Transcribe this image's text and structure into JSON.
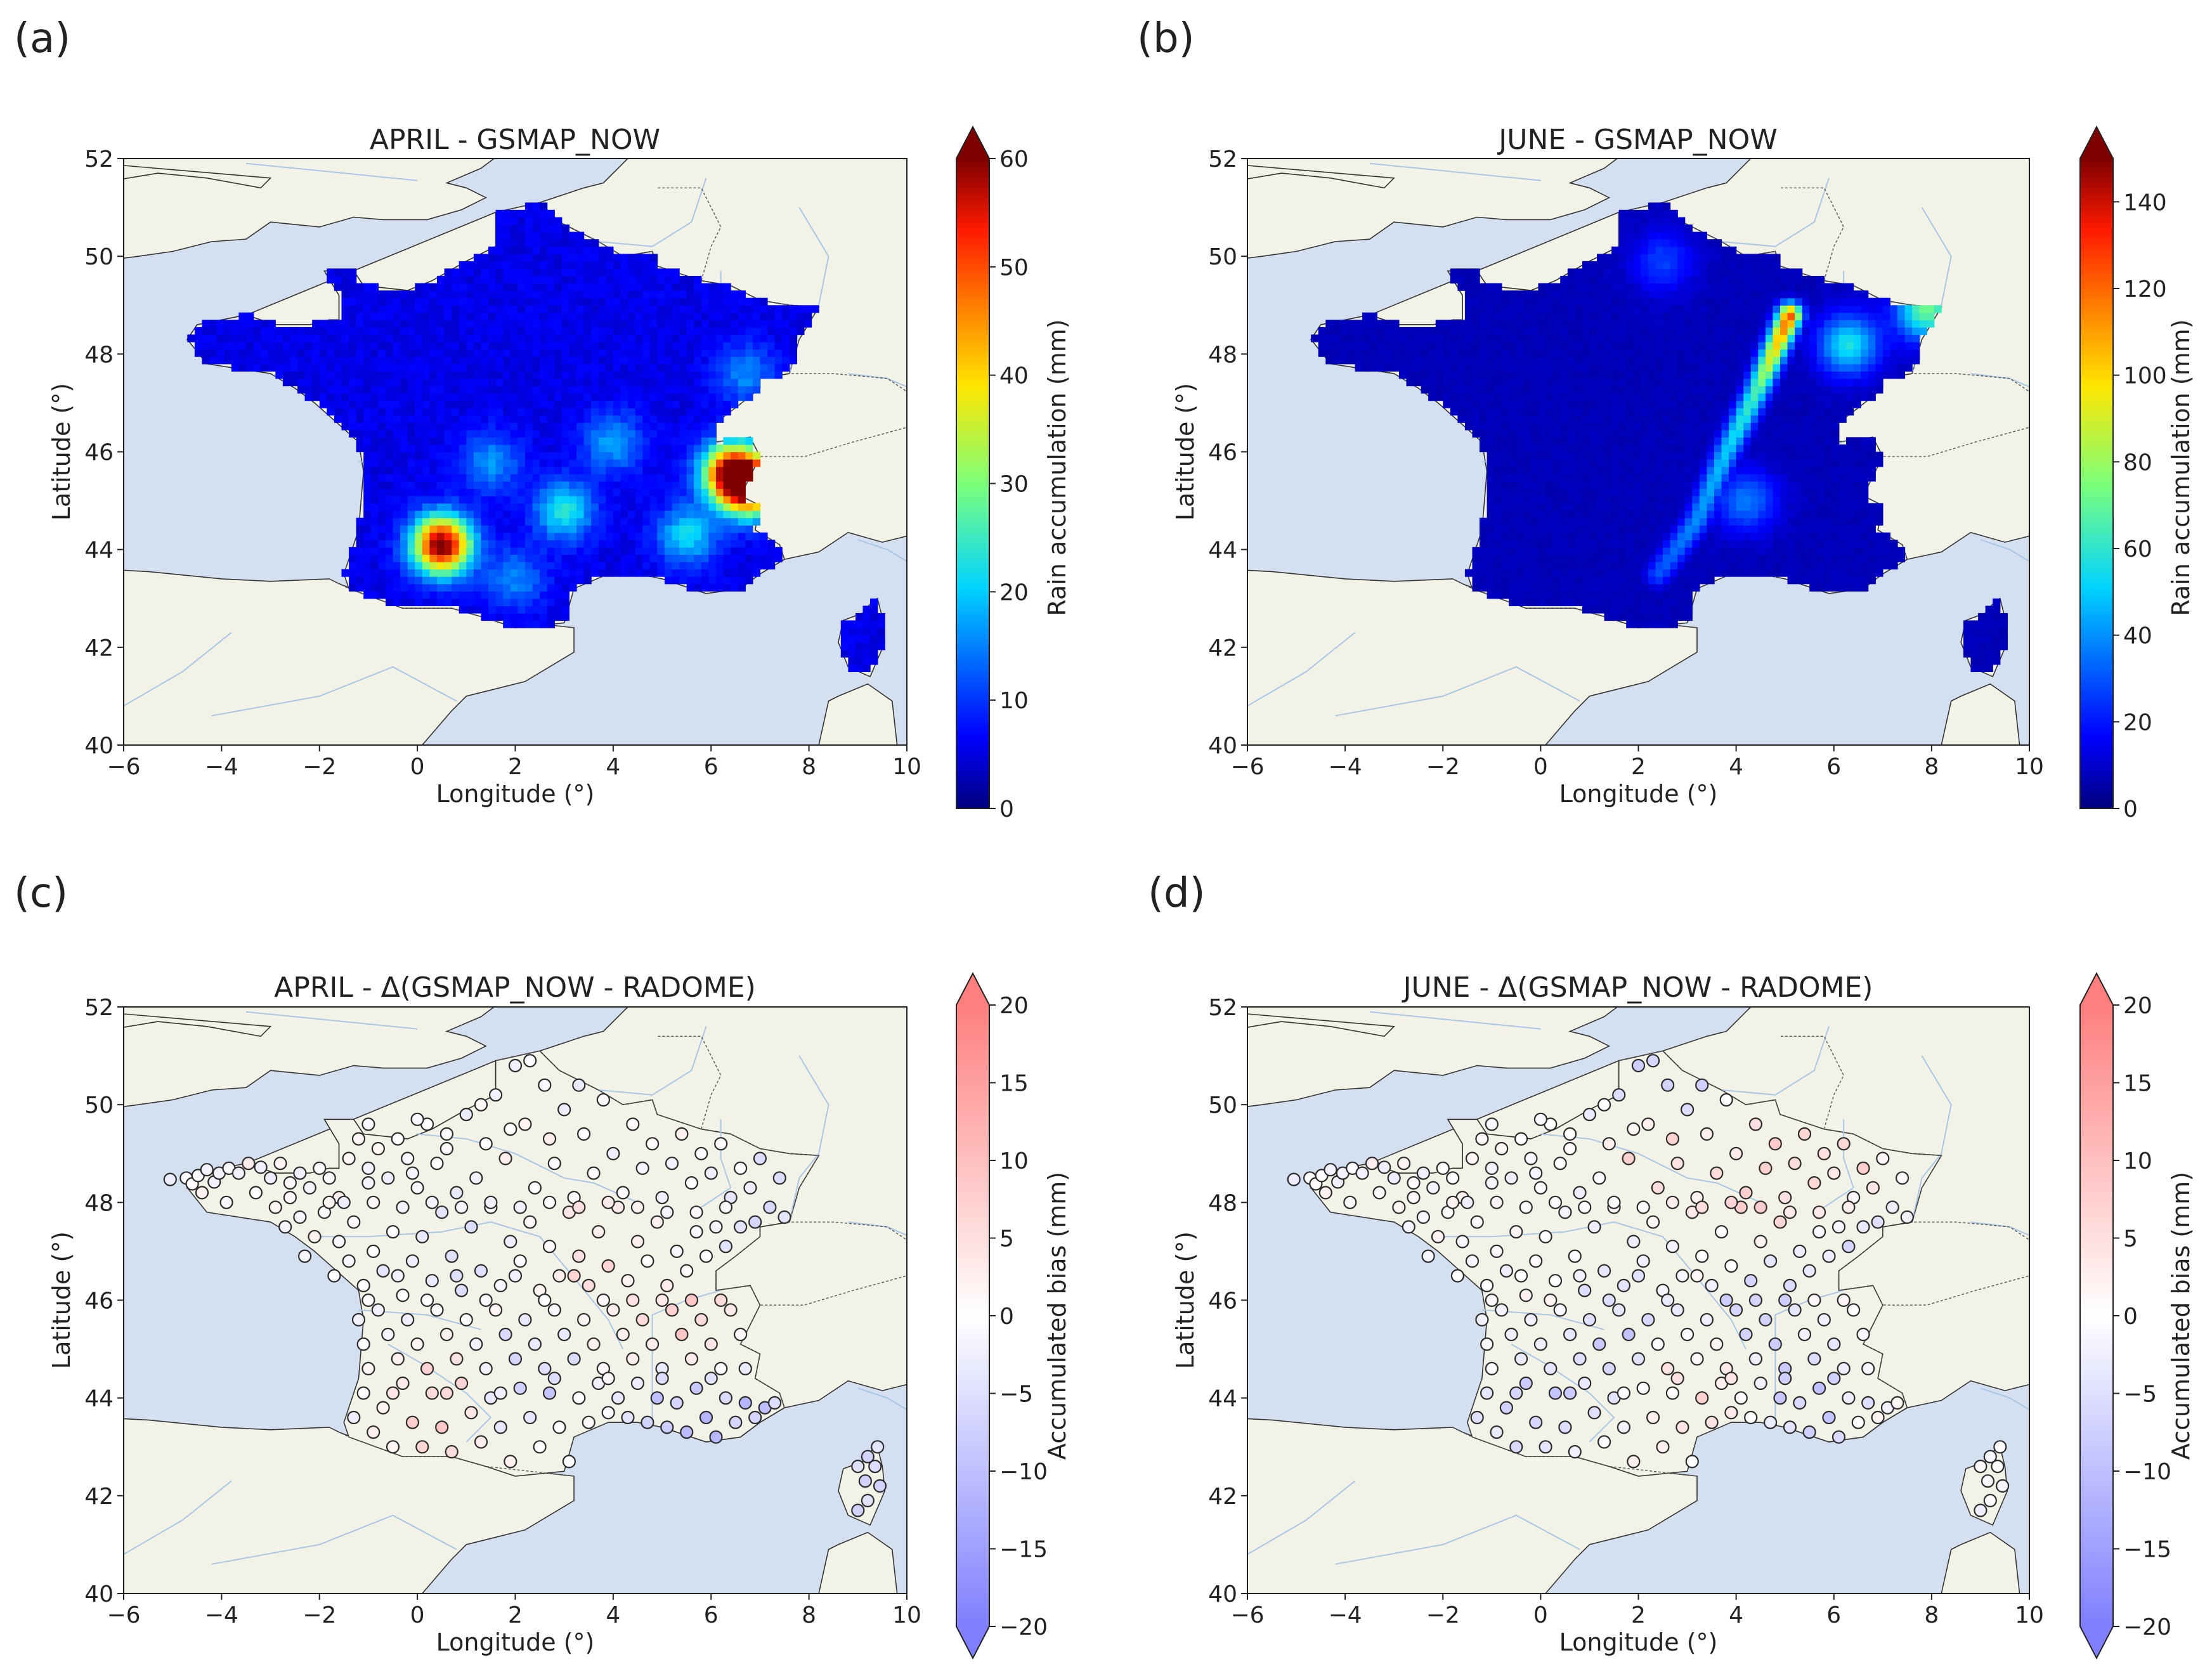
{
  "colors": {
    "ocean": "#d4e0f0",
    "land": "#f2f2e6",
    "coast": "#333333",
    "rivers": "#a9c6e6",
    "marker_edge": "#2b2b2b"
  },
  "chart_data": [
    {
      "panel": "(a)",
      "type": "heatmap",
      "title": "APRIL - GSMAP_NOW",
      "xlabel": "Longitude (°)",
      "ylabel": "Latitude (°)",
      "xlim": [
        -6,
        10
      ],
      "ylim": [
        40,
        52
      ],
      "xticks": [
        "−6",
        "−4",
        "−2",
        "0",
        "2",
        "4",
        "6",
        "8",
        "10"
      ],
      "yticks": [
        "40",
        "42",
        "44",
        "46",
        "48",
        "50",
        "52"
      ],
      "colorbar": {
        "label": "Rain accumulation (mm)",
        "cmap": "jet",
        "range": [
          0,
          60
        ],
        "ticks": [
          "0",
          "10",
          "20",
          "30",
          "40",
          "50",
          "60"
        ],
        "extend": "max"
      },
      "background": 4,
      "hotspots": [
        {
          "lon": 0.5,
          "lat": 44.1,
          "value": 60
        },
        {
          "lon": 6.4,
          "lat": 45.6,
          "value": 48
        },
        {
          "lon": 6.8,
          "lat": 45.3,
          "value": 55
        },
        {
          "lon": 3.0,
          "lat": 44.8,
          "value": 22
        },
        {
          "lon": 5.5,
          "lat": 44.3,
          "value": 20
        },
        {
          "lon": 4.0,
          "lat": 46.2,
          "value": 16
        },
        {
          "lon": 1.5,
          "lat": 45.8,
          "value": 15
        },
        {
          "lon": 2.0,
          "lat": 43.4,
          "value": 14
        },
        {
          "lon": 6.7,
          "lat": 47.6,
          "value": 14
        }
      ]
    },
    {
      "panel": "(b)",
      "type": "heatmap",
      "title": "JUNE - GSMAP_NOW",
      "xlabel": "Longitude (°)",
      "ylabel": "Latitude (°)",
      "xlim": [
        -6,
        10
      ],
      "ylim": [
        40,
        52
      ],
      "xticks": [
        "−6",
        "−4",
        "−2",
        "0",
        "2",
        "4",
        "6",
        "8",
        "10"
      ],
      "yticks": [
        "40",
        "42",
        "44",
        "46",
        "48",
        "50",
        "52"
      ],
      "colorbar": {
        "label": "Rain accumulation (mm)",
        "cmap": "jet",
        "range": [
          0,
          150
        ],
        "ticks": [
          "0",
          "20",
          "40",
          "60",
          "80",
          "100",
          "120",
          "140"
        ],
        "extend": "max"
      },
      "background": 6,
      "band": [
        {
          "lon": 2.4,
          "lat": 43.5,
          "value": 30
        },
        {
          "lon": 3.2,
          "lat": 44.6,
          "value": 40
        },
        {
          "lon": 3.8,
          "lat": 46.0,
          "value": 50
        },
        {
          "lon": 4.4,
          "lat": 47.2,
          "value": 65
        },
        {
          "lon": 5.1,
          "lat": 48.8,
          "value": 125
        }
      ],
      "hotspots": [
        {
          "lon": 6.3,
          "lat": 48.2,
          "value": 55
        },
        {
          "lon": 7.9,
          "lat": 48.9,
          "value": 70
        },
        {
          "lon": 4.2,
          "lat": 45.0,
          "value": 35
        },
        {
          "lon": 2.5,
          "lat": 49.9,
          "value": 25
        }
      ]
    },
    {
      "panel": "(c)",
      "type": "scatter",
      "title": "APRIL - Δ(GSMAP_NOW - RADOME)",
      "xlabel": "Longitude (°)",
      "ylabel": "Latitude (°)",
      "xlim": [
        -6,
        10
      ],
      "ylim": [
        40,
        52
      ],
      "xticks": [
        "−6",
        "−4",
        "−2",
        "0",
        "2",
        "4",
        "6",
        "8",
        "10"
      ],
      "yticks": [
        "40",
        "42",
        "44",
        "46",
        "48",
        "50",
        "52"
      ],
      "colorbar": {
        "label": "Accumulated bias (mm)",
        "cmap": "bwr",
        "range": [
          -20,
          20
        ],
        "ticks": [
          "−20",
          "−15",
          "−10",
          "−5",
          "0",
          "5",
          "10",
          "15",
          "20"
        ],
        "extend": "both"
      },
      "bias_regions": [
        {
          "lon": 0.5,
          "lat": 44.0,
          "value": 11
        },
        {
          "lon": 5.3,
          "lat": 45.6,
          "value": 10
        },
        {
          "lon": 3.3,
          "lat": 46.9,
          "value": 6
        },
        {
          "lon": 2.2,
          "lat": 44.3,
          "value": -10
        },
        {
          "lon": 5.2,
          "lat": 43.7,
          "value": -12
        },
        {
          "lon": 6.7,
          "lat": 43.5,
          "value": -13
        },
        {
          "lon": 7.3,
          "lat": 47.8,
          "value": -9
        },
        {
          "lon": 9.2,
          "lat": 42.4,
          "value": -8
        },
        {
          "lon": 0.5,
          "lat": 46.8,
          "value": -6
        }
      ]
    },
    {
      "panel": "(d)",
      "type": "scatter",
      "title": "JUNE - Δ(GSMAP_NOW - RADOME)",
      "xlabel": "Longitude (°)",
      "ylabel": "Latitude (°)",
      "xlim": [
        -6,
        10
      ],
      "ylim": [
        40,
        52
      ],
      "xticks": [
        "−6",
        "−4",
        "−2",
        "0",
        "2",
        "4",
        "6",
        "8",
        "10"
      ],
      "yticks": [
        "40",
        "42",
        "44",
        "46",
        "48",
        "50",
        "52"
      ],
      "colorbar": {
        "label": "Accumulated bias (mm)",
        "cmap": "bwr",
        "range": [
          -20,
          20
        ],
        "ticks": [
          "−20",
          "−15",
          "−10",
          "−5",
          "0",
          "5",
          "10",
          "15",
          "20"
        ],
        "extend": "both"
      },
      "bias_regions": [
        {
          "lon": 4.7,
          "lat": 48.6,
          "value": 12
        },
        {
          "lon": 6.5,
          "lat": 48.4,
          "value": 11
        },
        {
          "lon": 2.5,
          "lat": 48.9,
          "value": 9
        },
        {
          "lon": 3.2,
          "lat": 44.5,
          "value": 7
        },
        {
          "lon": 1.5,
          "lat": 45.3,
          "value": -10
        },
        {
          "lon": 4.2,
          "lat": 45.6,
          "value": -11
        },
        {
          "lon": 5.5,
          "lat": 44.2,
          "value": -11
        },
        {
          "lon": 0.0,
          "lat": 43.6,
          "value": -12
        },
        {
          "lon": 2.5,
          "lat": 50.4,
          "value": -9
        },
        {
          "lon": 6.8,
          "lat": 47.7,
          "value": -11
        }
      ]
    }
  ]
}
